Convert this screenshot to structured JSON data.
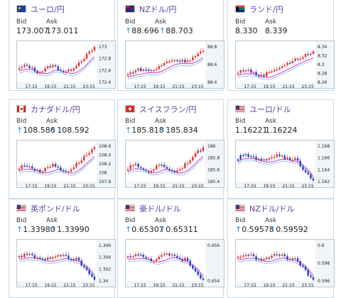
{
  "labels": {
    "bid": "Bid",
    "ask": "Ask"
  },
  "x_ticks": [
    "17:15",
    "19:15",
    "21:15",
    "23:15"
  ],
  "panels": [
    {
      "pair": "ユーロ/円",
      "flag": "eu",
      "bid": "173.007",
      "ask": "173.011",
      "bid_arrow": "",
      "ask_arrow": "",
      "chart": {
        "yticks": [
          "173",
          "172.8",
          "172.6",
          "172.4"
        ],
        "shape": "rise_end",
        "dark_on_left": false
      }
    },
    {
      "pair": "NZドル/円",
      "flag": "nz",
      "bid": "88.696",
      "ask": "88.703",
      "bid_arrow": "↑",
      "ask_arrow": "↑",
      "chart": {
        "yticks": [
          "88.8",
          "88.6",
          "88.4"
        ],
        "shape": "rise",
        "dark_on_left": false
      }
    },
    {
      "pair": "ランド/円",
      "flag": "za",
      "bid": "8.330",
      "ask": "8.339",
      "bid_arrow": "",
      "ask_arrow": "",
      "chart": {
        "yticks": [
          "8.34",
          "8.32",
          "8.3",
          "8.28",
          "8.26"
        ],
        "shape": "rise_flat",
        "dark_on_left": false
      }
    },
    {
      "pair": "カナダドル/円",
      "flag": "ca",
      "bid": "108.586",
      "ask": "108.592",
      "bid_arrow": "↑",
      "ask_arrow": "↑",
      "chart": {
        "yticks": [
          "108.6",
          "108.4",
          "108.2",
          "108",
          "107.8"
        ],
        "shape": "rise_end",
        "dark_on_left": false
      }
    },
    {
      "pair": "スイスフラン/円",
      "flag": "ch",
      "bid": "185.818",
      "ask": "185.834",
      "bid_arrow": "↑",
      "ask_arrow": "↑",
      "chart": {
        "yticks": [
          "186",
          "185.8",
          "185.6",
          "185.4"
        ],
        "shape": "rise_end",
        "dark_on_left": false
      }
    },
    {
      "pair": "ユーロ/ドル",
      "flag": "us",
      "bid": "1.16221",
      "ask": "1.16224",
      "bid_arrow": "",
      "ask_arrow": "",
      "chart": {
        "yticks": [
          "1.168",
          "1.166",
          "1.164",
          "1.162"
        ],
        "shape": "fall_end",
        "dark_on_left": true
      }
    },
    {
      "pair": "英ポンド/ドル",
      "flag": "us",
      "bid": "1.33980",
      "ask": "1.33990",
      "bid_arrow": "↑",
      "ask_arrow": "↑",
      "chart": {
        "yticks": [
          "1.346",
          "1.344",
          "1.342",
          "1.34"
        ],
        "shape": "fall_end",
        "dark_on_left": false
      }
    },
    {
      "pair": "豪ドル/ドル",
      "flag": "us",
      "bid": "0.65307",
      "ask": "0.65311",
      "bid_arrow": "↑",
      "ask_arrow": "↑",
      "chart": {
        "yticks": [
          "0.656",
          "0.654"
        ],
        "shape": "fall_end",
        "dark_on_left": false
      }
    },
    {
      "pair": "NZドル/ドル",
      "flag": "us",
      "bid": "0.59578",
      "ask": "0.59592",
      "bid_arrow": "↑",
      "ask_arrow": "↑",
      "chart": {
        "yticks": [
          "0.6",
          "0.598",
          "0.596"
        ],
        "shape": "fall_end",
        "dark_on_left": false
      }
    }
  ]
}
